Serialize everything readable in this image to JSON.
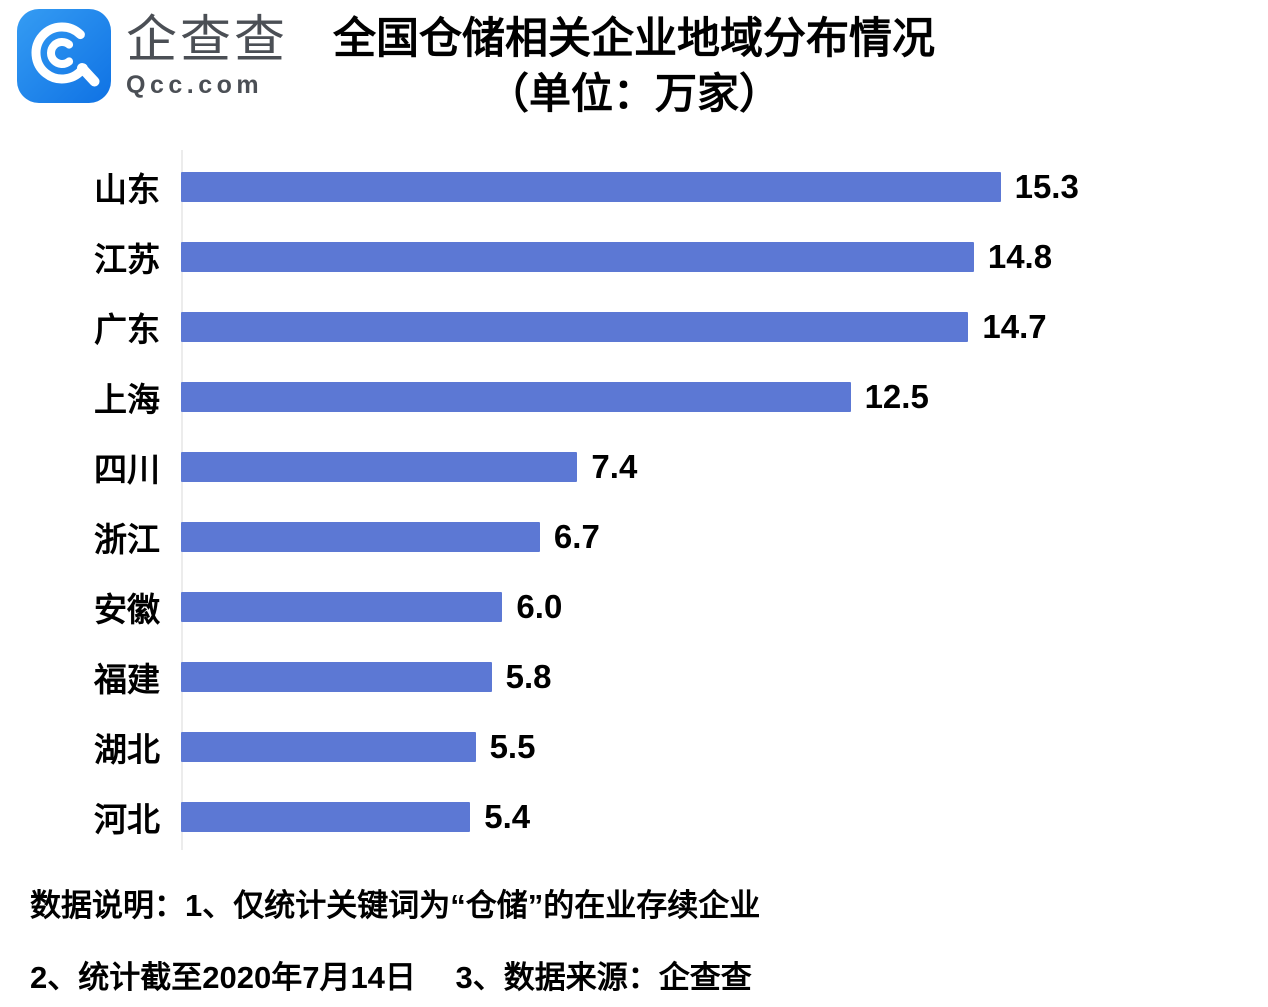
{
  "brand": {
    "name": "企查查",
    "domain": "Qcc.com",
    "icon": "qcc-magnifier-icon",
    "icon_color_top": "#359cf3",
    "icon_color_bottom": "#0f72e4",
    "text_color": "#4b4f55"
  },
  "header": {
    "title_line1": "全国仓储相关企业地域分布情况",
    "title_line2": "（单位：万家）"
  },
  "chart_data": {
    "type": "bar",
    "orientation": "horizontal",
    "title": "全国仓储相关企业地域分布情况",
    "subtitle": "（单位：万家）",
    "unit": "万家",
    "categories": [
      "山东",
      "江苏",
      "广东",
      "上海",
      "四川",
      "浙江",
      "安徽",
      "福建",
      "湖北",
      "河北"
    ],
    "values": [
      15.3,
      14.8,
      14.7,
      12.5,
      7.4,
      6.7,
      6.0,
      5.8,
      5.5,
      5.4
    ],
    "xlim": [
      0,
      15.3
    ],
    "bar_color": "#5c78d4",
    "axis_color": "#ececec",
    "value_labels": true,
    "grid": false,
    "legend": "none",
    "plot_max_fraction": 0.754
  },
  "footnotes": {
    "line1": "数据说明：1、仅统计关键词为“仓储”的在业存续企业",
    "line2": "2、统计截至2020年7月14日　 3、数据来源：企查查"
  }
}
